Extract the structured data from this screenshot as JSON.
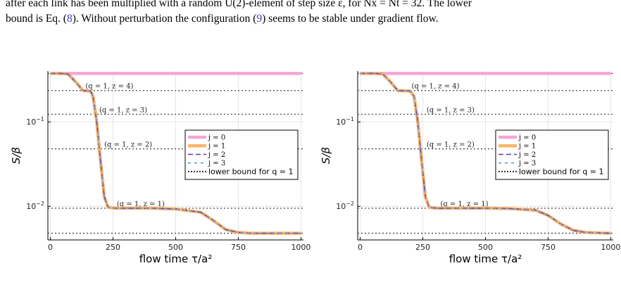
{
  "caption": {
    "line1": "after each link has been multiplied with a random U(2)-element of step size ε, for Nx = Nt = 32. The lower",
    "line2_a": "bound is Eq. (",
    "line2_ref1": "8",
    "line2_b": "). Without perturbation the configuration (",
    "line2_ref2": "9",
    "line2_c": ") seems to be stable under gradient flow."
  },
  "chart_data": [
    {
      "type": "line",
      "xlabel": "flow time τ/a²",
      "ylabel": "S/β",
      "xlim": [
        -10,
        1010
      ],
      "ylim": [
        0.004,
        0.4
      ],
      "yscale": "log",
      "xticks": [
        0,
        250,
        500,
        750,
        1000
      ],
      "yticks": [
        {
          "v": 0.1,
          "label": "10^-1"
        },
        {
          "v": 0.01,
          "label": "10^-2"
        }
      ],
      "grid": true,
      "legend_placement": "center-right",
      "hlines": [
        {
          "y": 0.375,
          "label": ""
        },
        {
          "y": 0.235,
          "label": "(q = 1, z = 4)"
        },
        {
          "y": 0.123,
          "label": "(q = 1, z = 3)"
        },
        {
          "y": 0.048,
          "label": "(q = 1, z = 2)"
        },
        {
          "y": 0.0095,
          "label": "(q = 1, z = 1)"
        },
        {
          "y": 0.0048,
          "label": ""
        }
      ],
      "legend": [
        "j = 0",
        "j = 1",
        "j = 2",
        "j = 3",
        "lower bound for q = 1"
      ],
      "colors": {
        "j0": "#f4a6d6",
        "j1": "#fbb46a",
        "j2": "#7b3fa0",
        "j3": "#5b9bd5",
        "bound": "#333333"
      },
      "series": [
        {
          "name": "j = 0",
          "x": [
            0,
            1000
          ],
          "y": [
            0.375,
            0.375
          ]
        },
        {
          "name": "j = 1",
          "x": [
            0,
            40,
            70,
            100,
            130,
            160,
            170,
            185,
            200,
            215,
            230,
            245,
            260,
            300,
            400,
            500,
            600,
            650,
            700,
            750,
            800,
            1000
          ],
          "y": [
            0.375,
            0.375,
            0.37,
            0.3,
            0.235,
            0.232,
            0.2,
            0.1,
            0.035,
            0.013,
            0.0098,
            0.0096,
            0.0095,
            0.0095,
            0.0095,
            0.0093,
            0.0085,
            0.0068,
            0.0053,
            0.0049,
            0.0048,
            0.0048
          ]
        },
        {
          "name": "j = 2",
          "x": [
            0,
            40,
            70,
            100,
            130,
            160,
            170,
            185,
            200,
            215,
            230,
            245,
            260,
            300,
            400,
            500,
            600,
            650,
            700,
            750,
            800,
            1000
          ],
          "y": [
            0.375,
            0.375,
            0.37,
            0.3,
            0.235,
            0.232,
            0.2,
            0.1,
            0.035,
            0.013,
            0.0098,
            0.0096,
            0.0095,
            0.0095,
            0.0095,
            0.0093,
            0.0085,
            0.0068,
            0.0053,
            0.0049,
            0.0048,
            0.0048
          ]
        },
        {
          "name": "j = 3",
          "x": [
            0,
            40,
            70,
            100,
            130,
            160,
            170,
            185,
            200,
            215,
            230,
            245,
            260,
            300,
            400,
            500,
            600,
            650,
            700,
            750,
            800,
            1000
          ],
          "y": [
            0.375,
            0.375,
            0.37,
            0.3,
            0.235,
            0.232,
            0.2,
            0.1,
            0.035,
            0.013,
            0.0098,
            0.0096,
            0.0095,
            0.0095,
            0.0095,
            0.0093,
            0.0085,
            0.0068,
            0.0053,
            0.0049,
            0.0048,
            0.0048
          ]
        }
      ]
    },
    {
      "type": "line",
      "xlabel": "flow time τ/a²",
      "ylabel": "S/β",
      "xlim": [
        -10,
        1010
      ],
      "ylim": [
        0.004,
        0.4
      ],
      "yscale": "log",
      "xticks": [
        0,
        250,
        500,
        750,
        1000
      ],
      "yticks": [
        {
          "v": 0.1,
          "label": "10^-1"
        },
        {
          "v": 0.01,
          "label": "10^-2"
        }
      ],
      "grid": true,
      "legend_placement": "center-right",
      "hlines": [
        {
          "y": 0.375,
          "label": ""
        },
        {
          "y": 0.235,
          "label": "(q = 1, z = 4)"
        },
        {
          "y": 0.123,
          "label": "(q = 1, z = 3)"
        },
        {
          "y": 0.048,
          "label": "(q = 1, z = 2)"
        },
        {
          "y": 0.0095,
          "label": "(q = 1, z = 1)"
        },
        {
          "y": 0.0048,
          "label": ""
        }
      ],
      "legend": [
        "j = 0",
        "j = 1",
        "j = 2",
        "j = 3",
        "lower bound for q = 1"
      ],
      "colors": {
        "j0": "#f4a6d6",
        "j1": "#fbb46a",
        "j2": "#7b3fa0",
        "j3": "#5b9bd5",
        "bound": "#333333"
      },
      "series": [
        {
          "name": "j = 0",
          "x": [
            0,
            1000
          ],
          "y": [
            0.375,
            0.375
          ]
        },
        {
          "name": "j = 1",
          "x": [
            0,
            60,
            90,
            120,
            150,
            200,
            215,
            230,
            245,
            260,
            275,
            290,
            310,
            400,
            500,
            600,
            700,
            750,
            800,
            850,
            900,
            1000
          ],
          "y": [
            0.375,
            0.375,
            0.37,
            0.3,
            0.235,
            0.232,
            0.2,
            0.1,
            0.035,
            0.013,
            0.0098,
            0.0096,
            0.0095,
            0.0095,
            0.0095,
            0.0094,
            0.009,
            0.0078,
            0.0062,
            0.0052,
            0.0049,
            0.0048
          ]
        },
        {
          "name": "j = 2",
          "x": [
            0,
            60,
            90,
            120,
            150,
            200,
            215,
            230,
            245,
            260,
            275,
            290,
            310,
            400,
            500,
            600,
            700,
            750,
            800,
            850,
            900,
            1000
          ],
          "y": [
            0.375,
            0.375,
            0.37,
            0.3,
            0.235,
            0.232,
            0.2,
            0.1,
            0.035,
            0.013,
            0.0098,
            0.0096,
            0.0095,
            0.0095,
            0.0095,
            0.0094,
            0.009,
            0.0078,
            0.0062,
            0.0052,
            0.0049,
            0.0048
          ]
        },
        {
          "name": "j = 3",
          "x": [
            0,
            60,
            90,
            120,
            150,
            200,
            215,
            230,
            245,
            260,
            275,
            290,
            310,
            400,
            500,
            600,
            700,
            750,
            800,
            850,
            900,
            1000
          ],
          "y": [
            0.375,
            0.375,
            0.37,
            0.3,
            0.235,
            0.232,
            0.2,
            0.1,
            0.035,
            0.013,
            0.0098,
            0.0096,
            0.0095,
            0.0095,
            0.0095,
            0.0094,
            0.009,
            0.0078,
            0.0062,
            0.0052,
            0.0049,
            0.0048
          ]
        }
      ]
    }
  ]
}
